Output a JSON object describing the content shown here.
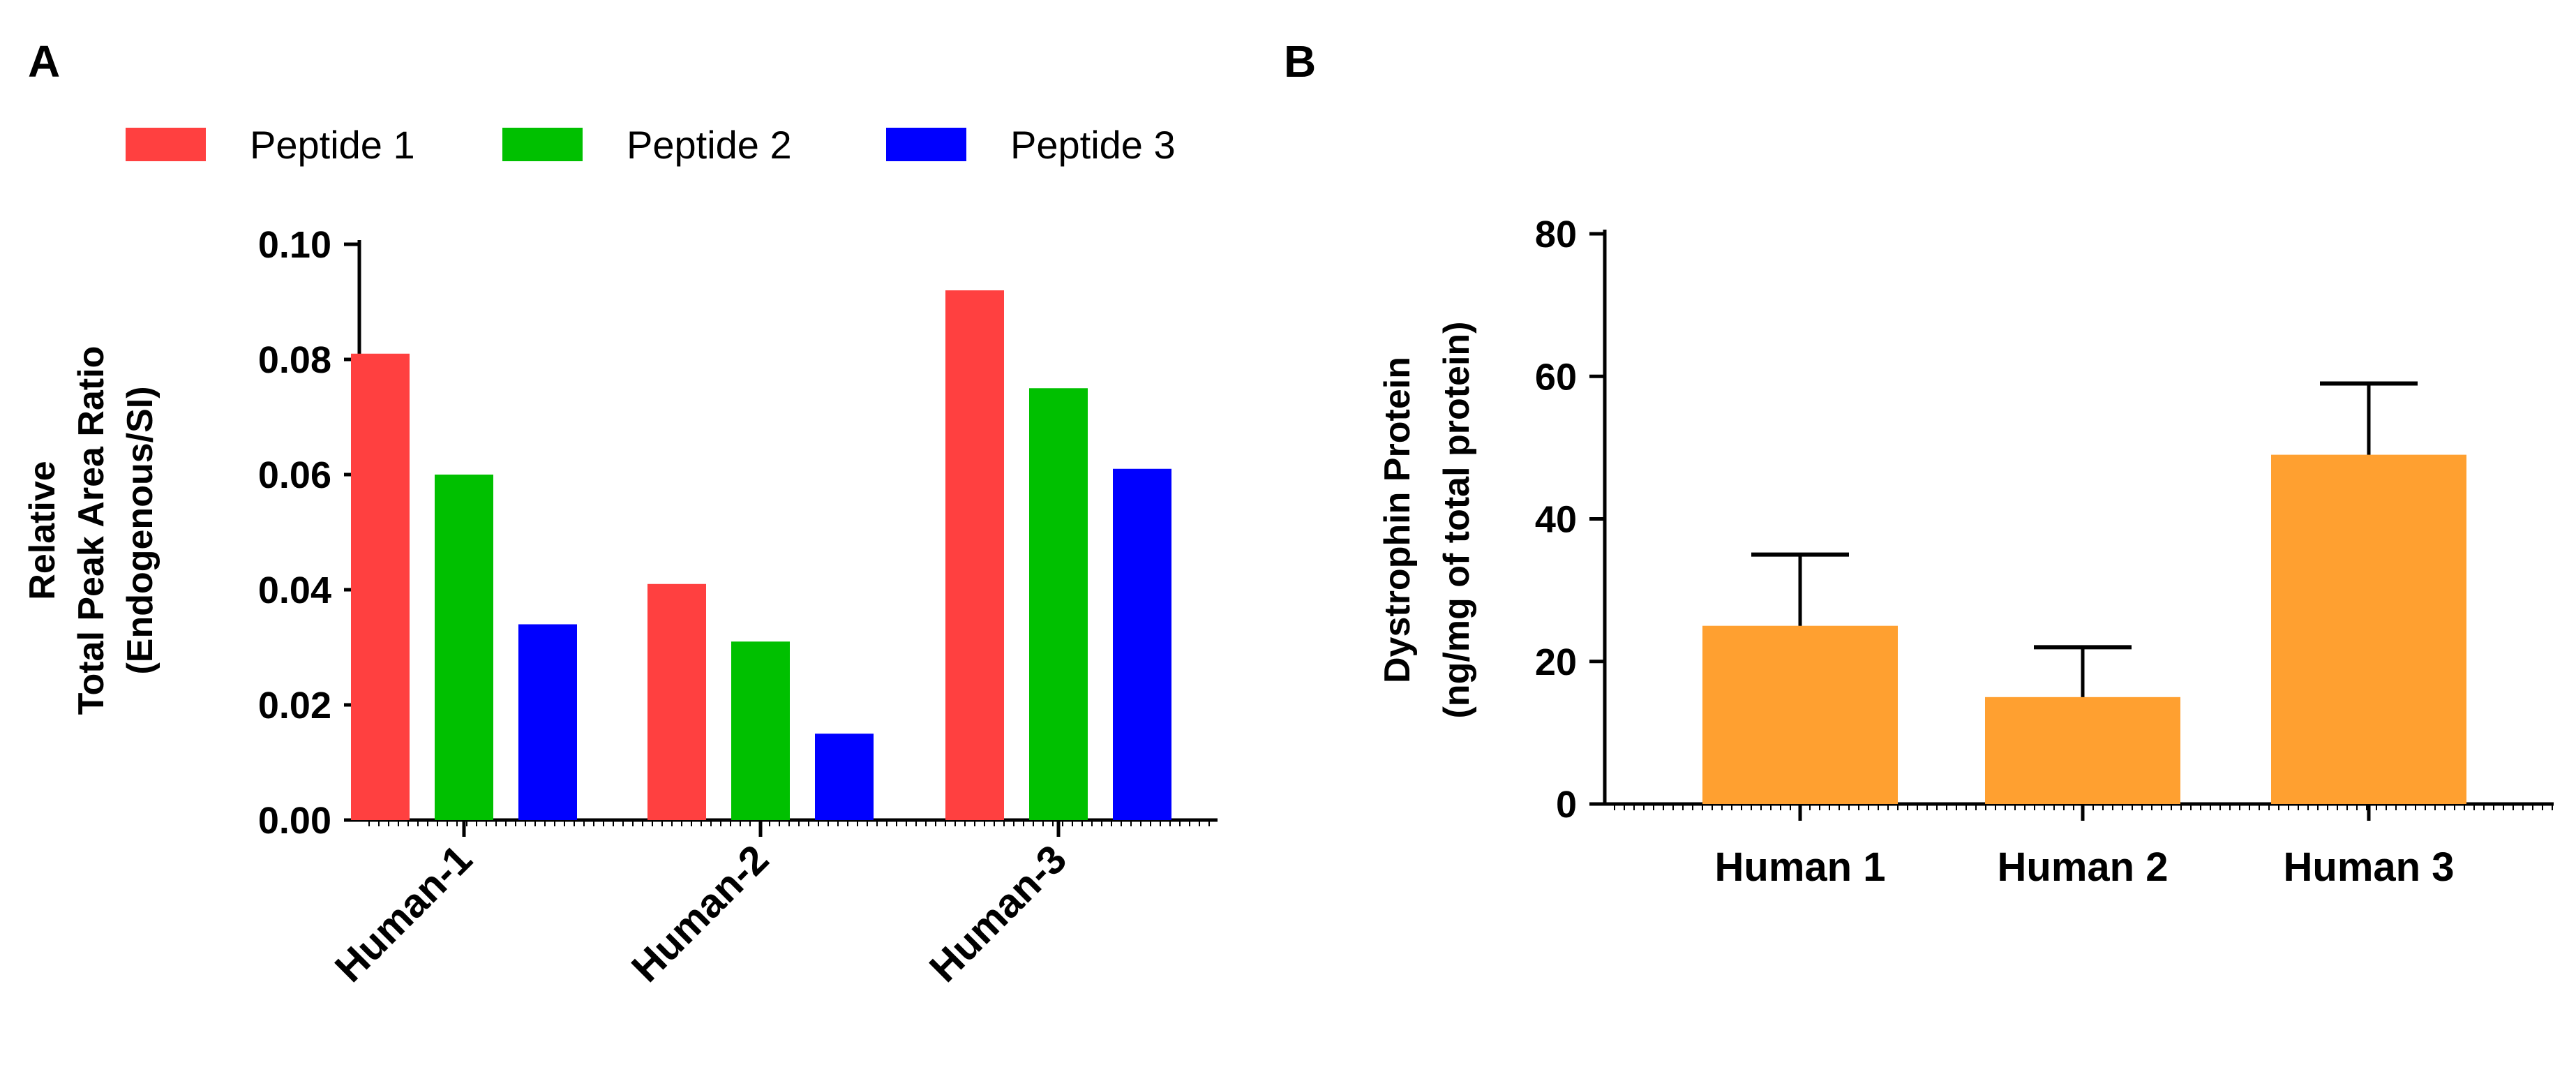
{
  "chart_data": [
    {
      "panel": "A",
      "type": "bar",
      "title": "",
      "categories": [
        "Human-1",
        "Human-2",
        "Human-3"
      ],
      "series": [
        {
          "name": "Peptide 1",
          "color": "#ff4040",
          "values": [
            0.081,
            0.041,
            0.092
          ]
        },
        {
          "name": "Peptide 2",
          "color": "#00c000",
          "values": [
            0.06,
            0.031,
            0.075
          ]
        },
        {
          "name": "Peptide 3",
          "color": "#0000ff",
          "values": [
            0.034,
            0.015,
            0.061
          ]
        }
      ],
      "ylabel_lines": [
        "Relative",
        "Total Peak Area Ratio",
        "(Endogenous/SI)"
      ],
      "xlabel": "",
      "ylim": [
        0,
        0.1
      ],
      "yticks": [
        "0.00",
        "0.02",
        "0.04",
        "0.06",
        "0.08",
        "0.10"
      ],
      "legend": "top",
      "grid": false
    },
    {
      "panel": "B",
      "type": "bar",
      "title": "",
      "categories": [
        "Human 1",
        "Human 2",
        "Human 3"
      ],
      "series": [
        {
          "name": "Dystrophin Protein",
          "color": "#ffa030",
          "values": [
            25,
            15,
            49
          ],
          "error_plus": [
            10,
            7,
            10
          ]
        }
      ],
      "ylabel_lines": [
        "Dystrophin Protein",
        "(ng/mg of total protein)"
      ],
      "xlabel": "",
      "ylim": [
        0,
        80
      ],
      "yticks": [
        "0",
        "20",
        "40",
        "60",
        "80"
      ],
      "legend": "none",
      "grid": false
    }
  ]
}
